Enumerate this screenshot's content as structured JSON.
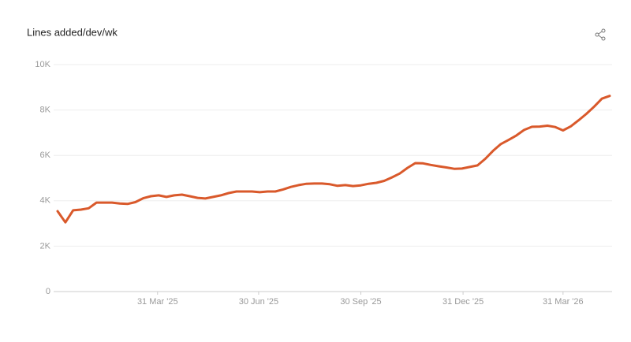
{
  "chart_data": {
    "type": "line",
    "title": "Lines added/dev/wk",
    "x": [
      "2024-12-31",
      "2025-01-07",
      "2025-01-14",
      "2025-01-21",
      "2025-01-28",
      "2025-02-04",
      "2025-02-11",
      "2025-02-18",
      "2025-02-25",
      "2025-03-04",
      "2025-03-11",
      "2025-03-18",
      "2025-03-25",
      "2025-04-01",
      "2025-04-08",
      "2025-04-15",
      "2025-04-22",
      "2025-04-29",
      "2025-05-06",
      "2025-05-13",
      "2025-05-20",
      "2025-05-27",
      "2025-06-03",
      "2025-06-10",
      "2025-06-17",
      "2025-06-24",
      "2025-07-01",
      "2025-07-08",
      "2025-07-15",
      "2025-07-22",
      "2025-07-29",
      "2025-08-05",
      "2025-08-12",
      "2025-08-19",
      "2025-08-26",
      "2025-09-02",
      "2025-09-09",
      "2025-09-16",
      "2025-09-23",
      "2025-09-30",
      "2025-10-07",
      "2025-10-14",
      "2025-10-21",
      "2025-10-28",
      "2025-11-04",
      "2025-11-11",
      "2025-11-18",
      "2025-11-25",
      "2025-12-02",
      "2025-12-09",
      "2025-12-16",
      "2025-12-23",
      "2025-12-30",
      "2026-01-06",
      "2026-01-13",
      "2026-01-20",
      "2026-01-27",
      "2026-02-03",
      "2026-02-10",
      "2026-02-17",
      "2026-02-24",
      "2026-03-03",
      "2026-03-10",
      "2026-03-17",
      "2026-03-24",
      "2026-03-31",
      "2026-04-07",
      "2026-04-14",
      "2026-04-21",
      "2026-04-28",
      "2026-05-05",
      "2026-05-12"
    ],
    "series": [
      {
        "name": "Lines added/dev/wk",
        "color": "#d9592b",
        "values": [
          3540,
          3050,
          3580,
          3610,
          3670,
          3920,
          3920,
          3920,
          3880,
          3860,
          3940,
          4110,
          4200,
          4240,
          4170,
          4240,
          4270,
          4200,
          4130,
          4100,
          4170,
          4240,
          4340,
          4410,
          4410,
          4410,
          4380,
          4410,
          4410,
          4500,
          4610,
          4690,
          4750,
          4760,
          4760,
          4730,
          4660,
          4690,
          4650,
          4680,
          4750,
          4790,
          4880,
          5030,
          5200,
          5450,
          5660,
          5650,
          5580,
          5520,
          5470,
          5410,
          5420,
          5490,
          5560,
          5850,
          6200,
          6500,
          6680,
          6880,
          7120,
          7260,
          7270,
          7310,
          7250,
          7100,
          7280,
          7550,
          7830,
          8150,
          8500,
          8620
        ]
      }
    ],
    "xlim": [
      "2024-12-31",
      "2026-05-12"
    ],
    "xticks": [
      {
        "value": "2025-03-31",
        "label": "31 Mar '25"
      },
      {
        "value": "2025-06-30",
        "label": "30 Jun '25"
      },
      {
        "value": "2025-09-30",
        "label": "30 Sep '25"
      },
      {
        "value": "2025-12-31",
        "label": "31 Dec '25"
      },
      {
        "value": "2026-03-31",
        "label": "31 Mar '26"
      }
    ],
    "ylim": [
      0,
      10000
    ],
    "yticks": [
      0,
      {
        "value": 2000,
        "label": "2K"
      },
      {
        "value": 4000,
        "label": "4K"
      },
      {
        "value": 6000,
        "label": "6K"
      },
      {
        "value": 8000,
        "label": "8K"
      },
      {
        "value": 10000,
        "label": "10K"
      }
    ],
    "grid": true
  }
}
